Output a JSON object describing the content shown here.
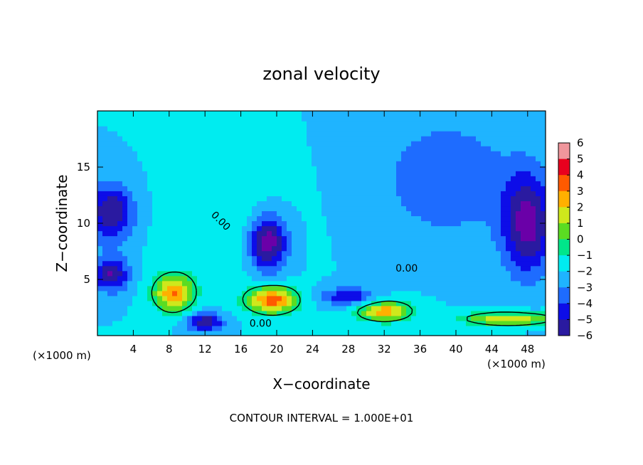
{
  "chart_data": {
    "type": "heatmap",
    "title": "zonal velocity",
    "xlabel": "X−coordinate",
    "ylabel": "Z−coordinate",
    "x_unit_left": "(×1000 m)",
    "x_unit_right": "(×1000 m)",
    "xlim": [
      0,
      50
    ],
    "ylim": [
      0,
      20
    ],
    "x_ticks": [
      "4",
      "8",
      "12",
      "16",
      "20",
      "24",
      "28",
      "32",
      "36",
      "40",
      "44",
      "48"
    ],
    "x_tick_values": [
      4,
      8,
      12,
      16,
      20,
      24,
      28,
      32,
      36,
      40,
      44,
      48
    ],
    "y_ticks": [
      "5",
      "10",
      "15"
    ],
    "y_tick_values": [
      5,
      10,
      15
    ],
    "colorbar": {
      "range": [
        -6,
        6
      ],
      "ticks": [
        "6",
        "5",
        "4",
        "3",
        "2",
        "1",
        "0",
        "−1",
        "−2",
        "−3",
        "−4",
        "−5",
        "−6"
      ],
      "tick_values": [
        6,
        5,
        4,
        3,
        2,
        1,
        0,
        -1,
        -2,
        -3,
        -4,
        -5,
        -6
      ]
    },
    "contour_labels": [
      "0.00",
      "0.00",
      "0.00"
    ],
    "footnote": "CONTOUR INTERVAL = 1.000E+01",
    "field_sources": [
      {
        "x": 1.5,
        "z": 11.0,
        "sx": 2.5,
        "sz": 2.5,
        "amp": -4.0
      },
      {
        "x": 19.0,
        "z": 8.3,
        "sx": 2.2,
        "sz": 2.5,
        "amp": -5.0
      },
      {
        "x": 48.0,
        "z": 10.0,
        "sx": 2.8,
        "sz": 4.5,
        "amp": -4.5
      },
      {
        "x": 39.0,
        "z": 14.0,
        "sx": 7.0,
        "sz": 5.0,
        "amp": -2.0
      },
      {
        "x": 1.5,
        "z": 5.5,
        "sx": 2.0,
        "sz": 1.5,
        "amp": -4.0
      },
      {
        "x": 8.5,
        "z": 3.8,
        "sx": 2.2,
        "sz": 1.6,
        "amp": 5.0
      },
      {
        "x": 19.5,
        "z": 3.2,
        "sx": 2.8,
        "sz": 1.2,
        "amp": 5.5
      },
      {
        "x": 32.0,
        "z": 2.2,
        "sx": 3.0,
        "sz": 0.9,
        "amp": 4.5
      },
      {
        "x": 46.0,
        "z": 1.5,
        "sx": 5.0,
        "sz": 0.6,
        "amp": 4.0
      },
      {
        "x": 12.0,
        "z": 1.2,
        "sx": 2.0,
        "sz": 0.8,
        "amp": -4.0
      },
      {
        "x": 28.0,
        "z": 3.5,
        "sx": 3.0,
        "sz": 0.8,
        "amp": -3.0
      },
      {
        "x": 14.0,
        "z": 10.0,
        "sx": 6.0,
        "sz": 5.0,
        "amp": 1.0
      }
    ],
    "field_base": -1.5
  }
}
